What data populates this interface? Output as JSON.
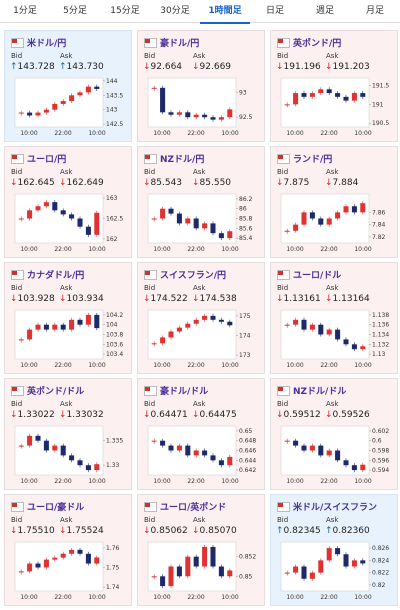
{
  "tabs": [
    "1分足",
    "5分足",
    "15分足",
    "30分足",
    "1時間足",
    "日足",
    "週足",
    "月足"
  ],
  "active_tab": 4,
  "bid_label": "Bid",
  "ask_label": "Ask",
  "cards": [
    {
      "name": "米ドル/円",
      "bid": {
        "arrow": "↑",
        "value": "143.728"
      },
      "ask": {
        "arrow": "↑",
        "value": "143.730"
      },
      "chart": {
        "yticks": [
          144,
          143.5,
          143,
          142.5
        ],
        "ylim": [
          142.4,
          144.1
        ],
        "xticks": [
          "10:00",
          "22:00",
          "10:00"
        ],
        "closes": [
          142.9,
          142.8,
          142.9,
          143.0,
          143.2,
          143.3,
          143.5,
          143.6,
          143.8,
          143.72
        ]
      }
    },
    {
      "name": "豪ドル/円",
      "bid": {
        "arrow": "↓",
        "value": "92.664"
      },
      "ask": {
        "arrow": "↓",
        "value": "92.669"
      },
      "chart": {
        "yticks": [
          93,
          92.5
        ],
        "ylim": [
          92.3,
          93.3
        ],
        "xticks": [
          "10:00",
          "22:00",
          "10:00"
        ],
        "closes": [
          93.1,
          92.6,
          92.55,
          92.6,
          92.5,
          92.55,
          92.5,
          92.45,
          92.5,
          92.66
        ]
      }
    },
    {
      "name": "英ポンド/円",
      "bid": {
        "arrow": "↓",
        "value": "191.196"
      },
      "ask": {
        "arrow": "↓",
        "value": "191.203"
      },
      "chart": {
        "yticks": [
          191.5,
          191,
          190.5
        ],
        "ylim": [
          190.4,
          191.7
        ],
        "xticks": [
          "10:00",
          "22:00",
          "10:00"
        ],
        "closes": [
          191.0,
          191.3,
          191.2,
          191.3,
          191.4,
          191.3,
          191.2,
          191.1,
          191.3,
          191.2
        ]
      }
    },
    {
      "name": "ユーロ/円",
      "bid": {
        "arrow": "↓",
        "value": "162.645"
      },
      "ask": {
        "arrow": "↓",
        "value": "162.649"
      },
      "chart": {
        "yticks": [
          163,
          162.5,
          162
        ],
        "ylim": [
          161.9,
          163.1
        ],
        "xticks": [
          "10:00",
          "22:00",
          "10:00"
        ],
        "closes": [
          162.5,
          162.7,
          162.8,
          162.9,
          162.7,
          162.6,
          162.5,
          162.3,
          162.1,
          162.64
        ]
      }
    },
    {
      "name": "NZドル/円",
      "bid": {
        "arrow": "↓",
        "value": "85.543"
      },
      "ask": {
        "arrow": "↓",
        "value": "85.550"
      },
      "chart": {
        "yticks": [
          86.2,
          86,
          85.8,
          85.6,
          85.4
        ],
        "ylim": [
          85.3,
          86.3
        ],
        "xticks": [
          "10:00",
          "22:00",
          "10:00"
        ],
        "closes": [
          85.8,
          86.0,
          85.9,
          85.7,
          85.8,
          85.6,
          85.7,
          85.5,
          85.4,
          85.54
        ]
      }
    },
    {
      "name": "ランド/円",
      "bid": {
        "arrow": "↓",
        "value": "7.875"
      },
      "ask": {
        "arrow": "↓",
        "value": "7.884"
      },
      "chart": {
        "yticks": [
          7.86,
          7.84,
          7.82
        ],
        "ylim": [
          7.81,
          7.89
        ],
        "xticks": [
          "10:00",
          "22:00",
          "10:00"
        ],
        "closes": [
          7.83,
          7.84,
          7.86,
          7.85,
          7.84,
          7.85,
          7.86,
          7.87,
          7.86,
          7.875
        ]
      }
    },
    {
      "name": "カナダドル/円",
      "bid": {
        "arrow": "↓",
        "value": "103.928"
      },
      "ask": {
        "arrow": "↓",
        "value": "103.934"
      },
      "chart": {
        "yticks": [
          104.2,
          104,
          103.8,
          103.6,
          103.4
        ],
        "ylim": [
          103.3,
          104.3
        ],
        "xticks": [
          "10:00",
          "22:00",
          "10:00"
        ],
        "closes": [
          103.7,
          103.9,
          104.0,
          103.9,
          104.0,
          103.9,
          104.1,
          104.0,
          104.2,
          103.93
        ]
      }
    },
    {
      "name": "スイスフラン/円",
      "bid": {
        "arrow": "↓",
        "value": "174.522"
      },
      "ask": {
        "arrow": "↓",
        "value": "174.538"
      },
      "chart": {
        "yticks": [
          175,
          174,
          173
        ],
        "ylim": [
          172.8,
          175.3
        ],
        "xticks": [
          "10:00",
          "22:00",
          "10:00"
        ],
        "closes": [
          173.6,
          173.9,
          174.2,
          174.4,
          174.6,
          174.8,
          175.0,
          174.8,
          174.7,
          174.52
        ]
      }
    },
    {
      "name": "ユーロ/ドル",
      "bid": {
        "arrow": "↓",
        "value": "1.13161"
      },
      "ask": {
        "arrow": "↓",
        "value": "1.13164"
      },
      "chart": {
        "yticks": [
          1.138,
          1.136,
          1.134,
          1.132,
          1.13
        ],
        "ylim": [
          1.129,
          1.139
        ],
        "xticks": [
          "10:00",
          "22:00",
          "10:00"
        ],
        "closes": [
          1.136,
          1.137,
          1.135,
          1.136,
          1.134,
          1.135,
          1.133,
          1.132,
          1.131,
          1.1316
        ]
      }
    },
    {
      "name": "英ポンド/ドル",
      "bid": {
        "arrow": "↓",
        "value": "1.33022"
      },
      "ask": {
        "arrow": "↓",
        "value": "1.33032"
      },
      "chart": {
        "yticks": [
          1.335,
          1.33
        ],
        "ylim": [
          1.328,
          1.338
        ],
        "xticks": [
          "10:00",
          "22:00",
          "10:00"
        ],
        "closes": [
          1.334,
          1.336,
          1.335,
          1.333,
          1.334,
          1.332,
          1.331,
          1.33,
          1.329,
          1.3302
        ]
      }
    },
    {
      "name": "豪ドル/ドル",
      "bid": {
        "arrow": "↓",
        "value": "0.64471"
      },
      "ask": {
        "arrow": "↓",
        "value": "0.64475"
      },
      "chart": {
        "yticks": [
          0.65,
          0.648,
          0.646,
          0.644,
          0.642
        ],
        "ylim": [
          0.641,
          0.651
        ],
        "xticks": [
          "10:00",
          "22:00",
          "10:00"
        ],
        "closes": [
          0.648,
          0.647,
          0.646,
          0.647,
          0.645,
          0.646,
          0.645,
          0.644,
          0.643,
          0.6447
        ]
      }
    },
    {
      "name": "NZドル/ドル",
      "bid": {
        "arrow": "↓",
        "value": "0.59512"
      },
      "ask": {
        "arrow": "↓",
        "value": "0.59526"
      },
      "chart": {
        "yticks": [
          0.602,
          0.6,
          0.598,
          0.596,
          0.594
        ],
        "ylim": [
          0.593,
          0.603
        ],
        "xticks": [
          "10:00",
          "22:00",
          "10:00"
        ],
        "closes": [
          0.6,
          0.599,
          0.598,
          0.599,
          0.597,
          0.598,
          0.596,
          0.595,
          0.594,
          0.5951
        ]
      }
    },
    {
      "name": "ユーロ/豪ドル",
      "bid": {
        "arrow": "↓",
        "value": "1.75510"
      },
      "ask": {
        "arrow": "↓",
        "value": "1.75524"
      },
      "chart": {
        "yticks": [
          1.76,
          1.75,
          1.74
        ],
        "ylim": [
          1.738,
          1.763
        ],
        "xticks": [
          "10:00",
          "22:00",
          "10:00"
        ],
        "closes": [
          1.748,
          1.752,
          1.75,
          1.754,
          1.755,
          1.757,
          1.759,
          1.757,
          1.752,
          1.7551
        ]
      }
    },
    {
      "name": "ユーロ/英ポンド",
      "bid": {
        "arrow": "↓",
        "value": "0.85062"
      },
      "ask": {
        "arrow": "↓",
        "value": "0.85070"
      },
      "chart": {
        "yticks": [
          0.852,
          0.85
        ],
        "ylim": [
          0.8485,
          0.8535
        ],
        "xticks": [
          "10:00",
          "22:00",
          "10:00"
        ],
        "closes": [
          0.85,
          0.849,
          0.851,
          0.85,
          0.852,
          0.851,
          0.853,
          0.851,
          0.85,
          0.8506
        ]
      }
    },
    {
      "name": "米ドル/スイスフラン",
      "bid": {
        "arrow": "↑",
        "value": "0.82345"
      },
      "ask": {
        "arrow": "↑",
        "value": "0.82360"
      },
      "chart": {
        "yticks": [
          0.826,
          0.824,
          0.822,
          0.82
        ],
        "ylim": [
          0.819,
          0.827
        ],
        "xticks": [
          "10:00",
          "22:00",
          "10:00"
        ],
        "closes": [
          0.822,
          0.823,
          0.821,
          0.822,
          0.824,
          0.826,
          0.825,
          0.823,
          0.824,
          0.8235
        ]
      }
    }
  ]
}
